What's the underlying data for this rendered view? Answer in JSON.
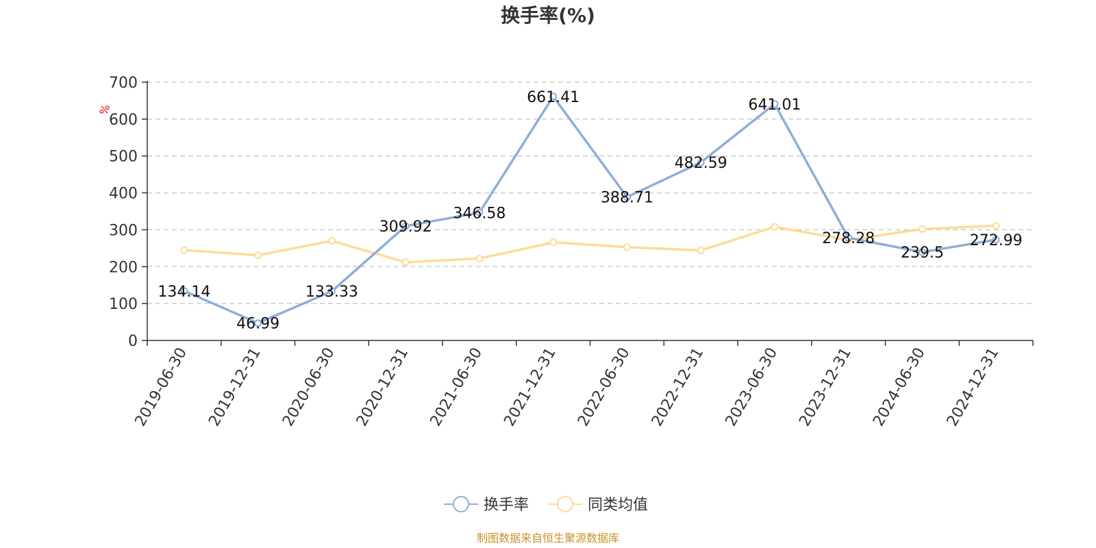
{
  "chart_data": {
    "type": "line",
    "title": "换手率(%)",
    "ylabel": "%",
    "ylim": [
      0,
      700
    ],
    "yticks": [
      0,
      100,
      200,
      300,
      400,
      500,
      600,
      700
    ],
    "grid": true,
    "legend_position": "bottom",
    "categories": [
      "2019-06-30",
      "2019-12-31",
      "2020-06-30",
      "2020-12-31",
      "2021-06-30",
      "2021-12-31",
      "2022-06-30",
      "2022-12-31",
      "2023-06-30",
      "2023-12-31",
      "2024-06-30",
      "2024-12-31"
    ],
    "series": [
      {
        "name": "换手率",
        "color": "#8eaed8",
        "values": [
          134.14,
          46.99,
          133.33,
          309.92,
          346.58,
          661.41,
          388.71,
          482.59,
          641.01,
          278.28,
          239.5,
          272.99
        ],
        "labels": [
          "134.14",
          "46.99",
          "133.33",
          "309.92",
          "346.58",
          "661.41",
          "388.71",
          "482.59",
          "641.01",
          "278.28",
          "239.5",
          "272.99"
        ]
      },
      {
        "name": "同类均值",
        "color": "#fddb98",
        "values": [
          245,
          231,
          270,
          212,
          222,
          266,
          253,
          244,
          308,
          272,
          302,
          311
        ]
      }
    ]
  },
  "source_text": "制图数据来自恒生聚源数据库",
  "unit_color": "#ff0000",
  "source_color": "#c8922a",
  "axis_color": "#333333",
  "grid_color": "#cccccc"
}
